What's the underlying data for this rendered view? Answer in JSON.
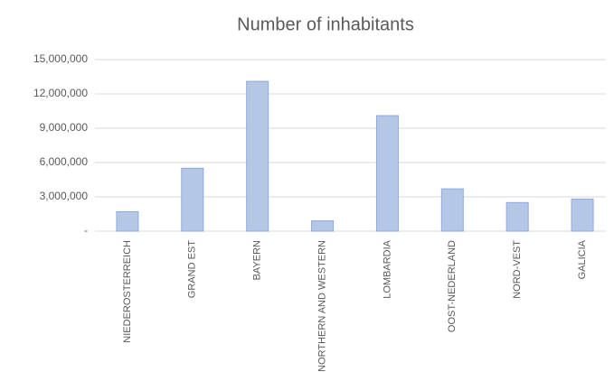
{
  "chart_data": {
    "type": "bar",
    "title": "Number of inhabitants",
    "categories": [
      "NIEDEROSTERREICH",
      "GRAND EST",
      "BAYERN",
      "NORTHERN AND WESTERN",
      "LOMBARDIA",
      "OOST-NEDERLAND",
      "NORD-VEST",
      "GALICIA"
    ],
    "values": [
      1700000,
      5500000,
      13100000,
      900000,
      10100000,
      3700000,
      2500000,
      2800000
    ],
    "color": "#b4c7e7",
    "ylim": [
      0,
      15000000
    ],
    "yticks": [
      {
        "value": 0,
        "label": "-"
      },
      {
        "value": 3000000,
        "label": "3,000,000"
      },
      {
        "value": 6000000,
        "label": "6,000,000"
      },
      {
        "value": 9000000,
        "label": "9,000,000"
      },
      {
        "value": 12000000,
        "label": "12,000,000"
      },
      {
        "value": 15000000,
        "label": "15,000,000"
      }
    ],
    "grid": true
  }
}
